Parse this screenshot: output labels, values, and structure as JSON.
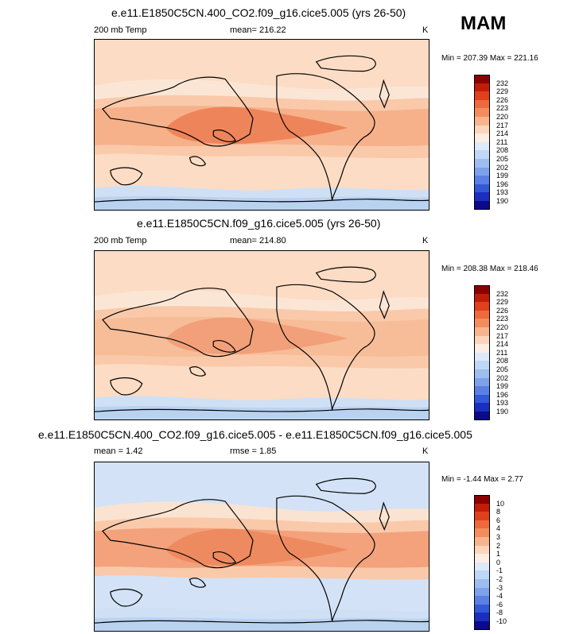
{
  "season": "MAM",
  "panels": [
    {
      "id": "p1",
      "title": "e.e11.E1850C5CN.400_CO2.f09_g16.cice5.005 (yrs 26-50)",
      "left_label": "200 mb Temp",
      "mean_label": "mean= 216.22",
      "units": "K",
      "minmax": "Min = 207.39 Max = 221.16",
      "colorbar": {
        "labels": [
          "232",
          "229",
          "226",
          "223",
          "220",
          "217",
          "214",
          "211",
          "208",
          "205",
          "202",
          "199",
          "196",
          "193",
          "190"
        ],
        "colors": [
          "#8b0000",
          "#bf1d09",
          "#e0401e",
          "#ee6a3c",
          "#f38d5e",
          "#f8b58d",
          "#fbd6bd",
          "#fdeee2",
          "#ddeaf9",
          "#bed7f4",
          "#9dbdef",
          "#7da1ea",
          "#5b80e4",
          "#3358d8",
          "#1a2ebf",
          "#0a0a8a"
        ],
        "bands": [
          "#fcdcc4",
          "#fbe6d6",
          "#f9c9aa",
          "#f6b18a",
          "#ee855a"
        ]
      }
    },
    {
      "id": "p2",
      "title": "e.e11.E1850C5CN.f09_g16.cice5.005 (yrs 26-50)",
      "left_label": "200 mb Temp",
      "mean_label": "mean= 214.80",
      "units": "K",
      "minmax": "Min = 208.38 Max = 218.46",
      "colorbar": {
        "labels": [
          "232",
          "229",
          "226",
          "223",
          "220",
          "217",
          "214",
          "211",
          "208",
          "205",
          "202",
          "199",
          "196",
          "193",
          "190"
        ],
        "colors": [
          "#8b0000",
          "#bf1d09",
          "#e0401e",
          "#ee6a3c",
          "#f38d5e",
          "#f8b58d",
          "#fbd6bd",
          "#fdeee2",
          "#ddeaf9",
          "#bed7f4",
          "#9dbdef",
          "#7da1ea",
          "#5b80e4",
          "#3358d8",
          "#1a2ebf",
          "#0a0a8a"
        ],
        "bands": [
          "#fcdcc4",
          "#fbe6d6",
          "#f9c9aa",
          "#f7bd98",
          "#f2a07a"
        ]
      }
    },
    {
      "id": "p3",
      "title": "e.e11.E1850C5CN.400_CO2.f09_g16.cice5.005 - e.e11.E1850C5CN.f09_g16.cice5.005",
      "left_label": "mean =   1.42",
      "mean_label": "rmse =   1.85",
      "units": "K",
      "minmax": "Min = -1.44 Max =   2.77",
      "colorbar": {
        "labels": [
          "10",
          "8",
          "6",
          "4",
          "3",
          "2",
          "1",
          "0",
          "-1",
          "-2",
          "-3",
          "-4",
          "-6",
          "-8",
          "-10"
        ],
        "colors": [
          "#8b0000",
          "#bf1d09",
          "#e0401e",
          "#ee6a3c",
          "#f38d5e",
          "#f8b58d",
          "#fbd6bd",
          "#fdeee2",
          "#ddeaf9",
          "#bed7f4",
          "#9dbdef",
          "#7da1ea",
          "#5b80e4",
          "#3358d8",
          "#1a2ebf",
          "#0a0a8a"
        ],
        "bands": [
          "#d3e2f6",
          "#fbe3d1",
          "#f9c9aa",
          "#f3a27c",
          "#ee8a5f"
        ]
      }
    }
  ],
  "chart_data": [
    {
      "type": "heatmap",
      "title": "e.e11.E1850C5CN.400_CO2.f09_g16.cice5.005 (yrs 26-50)",
      "variable": "200 mb Temp",
      "units": "K",
      "mean": 216.22,
      "min": 207.39,
      "max": 221.16,
      "contour_levels": [
        190,
        193,
        196,
        199,
        202,
        205,
        208,
        211,
        214,
        217,
        220,
        223,
        226,
        229,
        232
      ]
    },
    {
      "type": "heatmap",
      "title": "e.e11.E1850C5CN.f09_g16.cice5.005 (yrs 26-50)",
      "variable": "200 mb Temp",
      "units": "K",
      "mean": 214.8,
      "min": 208.38,
      "max": 218.46,
      "contour_levels": [
        190,
        193,
        196,
        199,
        202,
        205,
        208,
        211,
        214,
        217,
        220,
        223,
        226,
        229,
        232
      ]
    },
    {
      "type": "heatmap",
      "title": "e.e11.E1850C5CN.400_CO2.f09_g16.cice5.005 - e.e11.E1850C5CN.f09_g16.cice5.005",
      "units": "K",
      "mean": 1.42,
      "rmse": 1.85,
      "min": -1.44,
      "max": 2.77,
      "contour_levels": [
        -10,
        -8,
        -6,
        -4,
        -3,
        -2,
        -1,
        0,
        1,
        2,
        3,
        4,
        6,
        8,
        10
      ]
    }
  ]
}
